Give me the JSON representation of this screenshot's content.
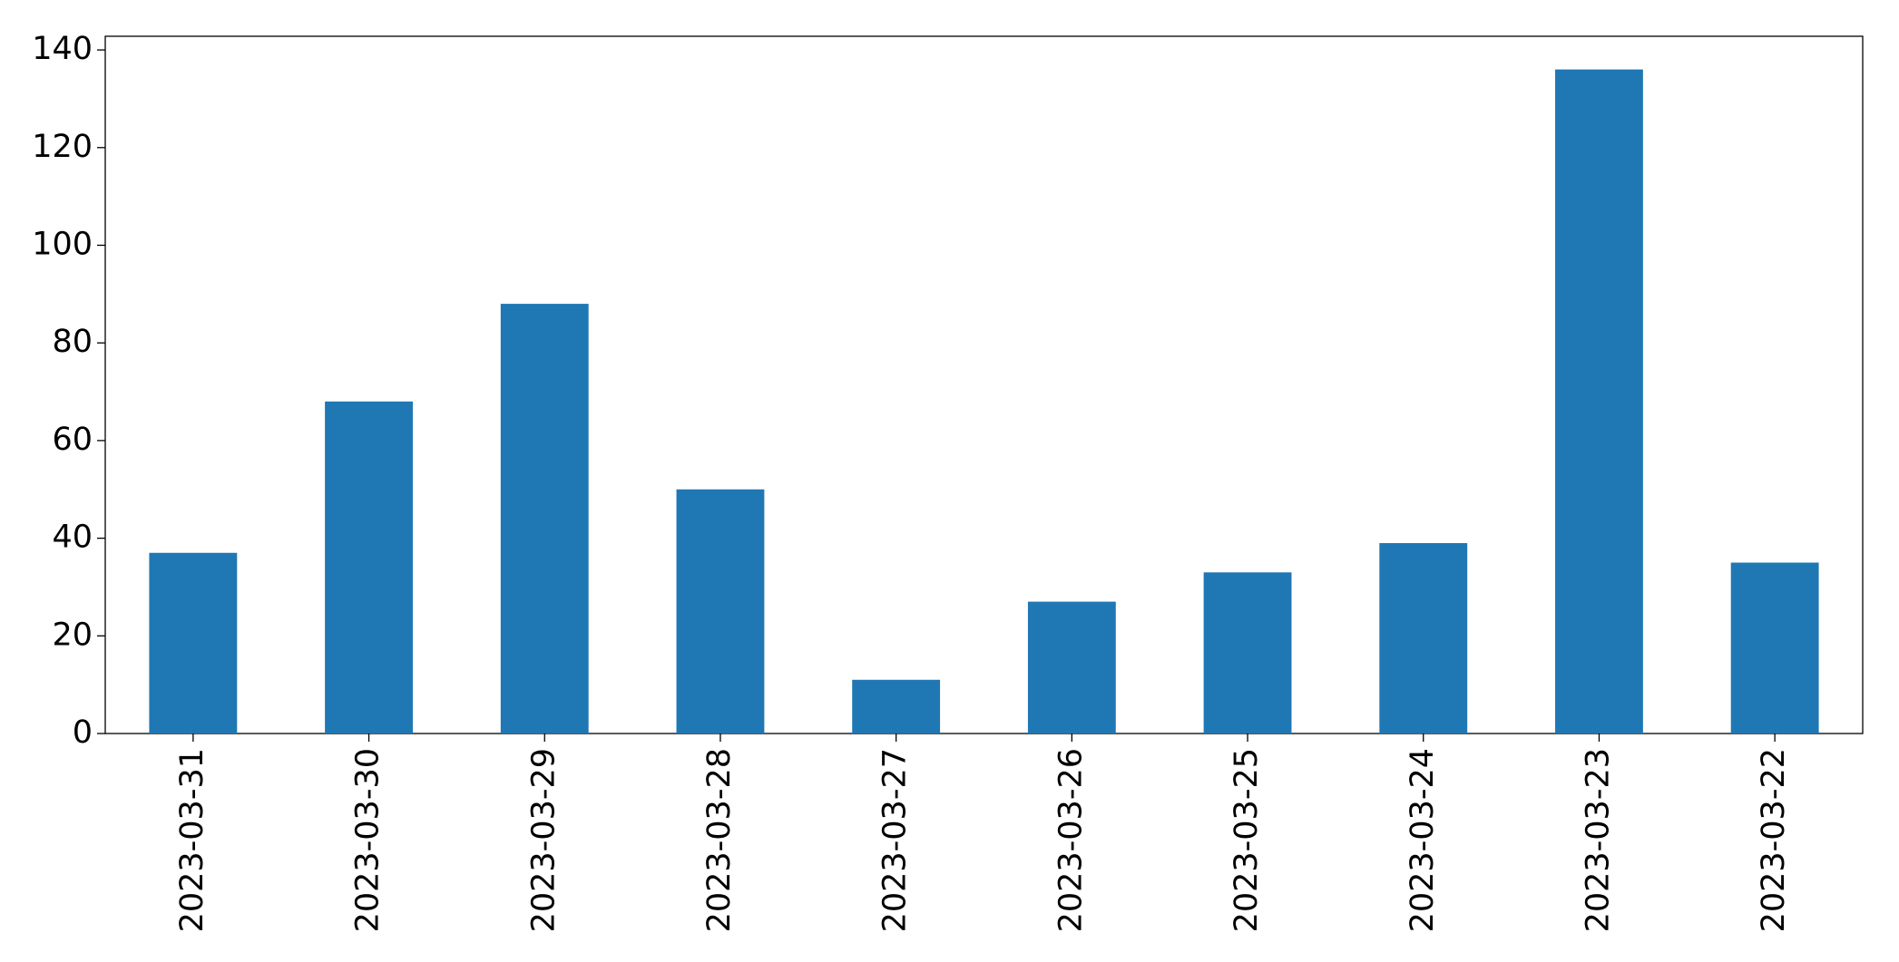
{
  "chart_data": {
    "type": "bar",
    "categories": [
      "2023-03-31",
      "2023-03-30",
      "2023-03-29",
      "2023-03-28",
      "2023-03-27",
      "2023-03-26",
      "2023-03-25",
      "2023-03-24",
      "2023-03-23",
      "2023-03-22"
    ],
    "values": [
      37,
      68,
      88,
      50,
      11,
      27,
      33,
      39,
      136,
      35
    ],
    "color": "#1f77b4",
    "ylim": [
      0,
      142.8
    ],
    "yticks": [
      0,
      20,
      40,
      60,
      80,
      100,
      120,
      140
    ],
    "grid": false
  }
}
